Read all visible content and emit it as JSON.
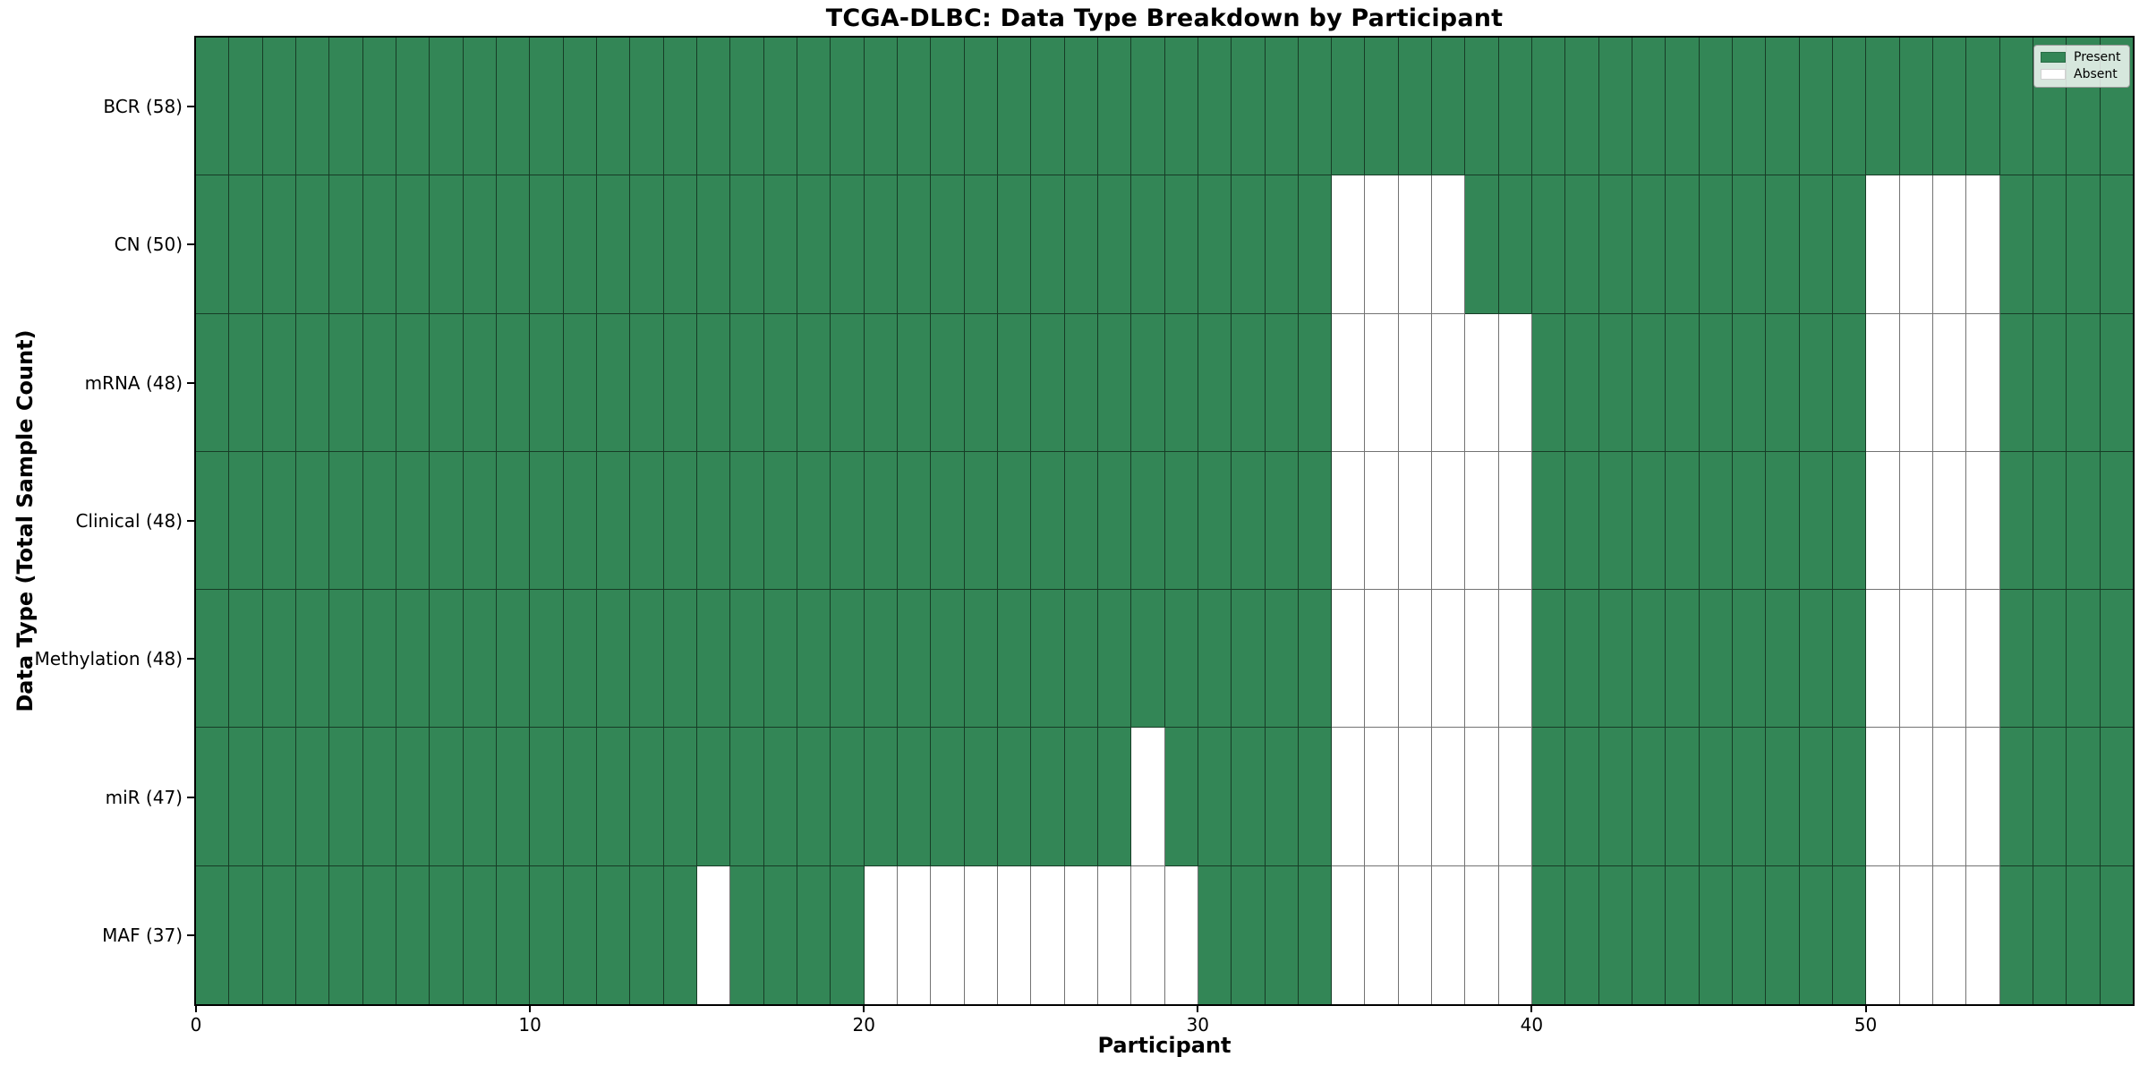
{
  "title": "TCGA-DLBC: Data Type Breakdown by Participant",
  "x_axis": {
    "title": "Participant",
    "ticks": [
      "0",
      "10",
      "20",
      "30",
      "40",
      "50"
    ],
    "tick_values": [
      0,
      10,
      20,
      30,
      40,
      50
    ]
  },
  "y_axis": {
    "title": "Data Type (Total Sample Count)"
  },
  "legend": {
    "items": [
      {
        "label": "Present",
        "color": "#338656"
      },
      {
        "label": "Absent",
        "color": "#ffffff"
      }
    ]
  },
  "colors": {
    "present": "#338656",
    "absent": "#ffffff",
    "grid": "rgba(0,0,0,0.55)",
    "frame": "#000000",
    "background": "#ffffff"
  },
  "chart_data": {
    "type": "heatmap",
    "title": "TCGA-DLBC: Data Type Breakdown by Participant",
    "xlabel": "Participant",
    "ylabel": "Data Type (Total Sample Count)",
    "n_participants": 58,
    "x_range": [
      0,
      58
    ],
    "x_ticks": [
      0,
      10,
      20,
      30,
      40,
      50
    ],
    "legend_entries": [
      "Present",
      "Absent"
    ],
    "legend_position": "upper right",
    "cell_encoding": "1 = Present (green), 0 = Absent (white)",
    "rows": [
      {
        "label": "BCR (58)",
        "data_type": "BCR",
        "present_count": 58,
        "absent_participants": []
      },
      {
        "label": "CN (50)",
        "data_type": "CN",
        "present_count": 50,
        "absent_participants": [
          34,
          35,
          36,
          37,
          50,
          51,
          52,
          53
        ]
      },
      {
        "label": "mRNA (48)",
        "data_type": "mRNA",
        "present_count": 48,
        "absent_participants": [
          34,
          35,
          36,
          37,
          38,
          39,
          50,
          51,
          52,
          53
        ]
      },
      {
        "label": "Clinical (48)",
        "data_type": "Clinical",
        "present_count": 48,
        "absent_participants": [
          34,
          35,
          36,
          37,
          38,
          39,
          50,
          51,
          52,
          53
        ]
      },
      {
        "label": "Methylation (48)",
        "data_type": "Methylation",
        "present_count": 48,
        "absent_participants": [
          34,
          35,
          36,
          37,
          38,
          39,
          50,
          51,
          52,
          53
        ]
      },
      {
        "label": "miR (47)",
        "data_type": "miR",
        "present_count": 47,
        "absent_participants": [
          28,
          34,
          35,
          36,
          37,
          38,
          39,
          50,
          51,
          52,
          53
        ]
      },
      {
        "label": "MAF (37)",
        "data_type": "MAF",
        "present_count": 37,
        "absent_participants": [
          15,
          20,
          21,
          22,
          23,
          24,
          25,
          26,
          27,
          28,
          29,
          34,
          35,
          36,
          37,
          38,
          39,
          50,
          51,
          52,
          53
        ]
      }
    ]
  }
}
